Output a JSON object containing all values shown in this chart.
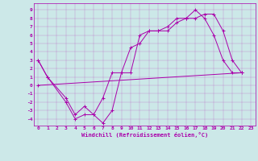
{
  "xlabel": "Windchill (Refroidissement éolien,°C)",
  "bg_color": "#cce8e8",
  "line_color": "#aa00aa",
  "xlim": [
    -0.5,
    23.5
  ],
  "ylim": [
    -4.8,
    9.8
  ],
  "xticks": [
    0,
    1,
    2,
    3,
    4,
    5,
    6,
    7,
    8,
    9,
    10,
    11,
    12,
    13,
    14,
    15,
    16,
    17,
    18,
    19,
    20,
    21,
    22,
    23
  ],
  "yticks": [
    -4,
    -3,
    -2,
    -1,
    0,
    1,
    2,
    3,
    4,
    5,
    6,
    7,
    8,
    9
  ],
  "series": [
    {
      "x": [
        0,
        1,
        3,
        4,
        5,
        6,
        7,
        8,
        9,
        10,
        11,
        12,
        13,
        14,
        15,
        16,
        17,
        18,
        19,
        20,
        21,
        22
      ],
      "y": [
        3,
        1,
        -2,
        -4,
        -3.5,
        -3.5,
        -4.5,
        -3,
        1.5,
        1.5,
        6,
        6.5,
        6.5,
        7,
        8,
        8,
        9,
        8,
        6,
        3,
        1.5,
        1.5
      ]
    },
    {
      "x": [
        0,
        1,
        3,
        4,
        5,
        6,
        7,
        8,
        9,
        10,
        11,
        12,
        13,
        14,
        15,
        16,
        17,
        18,
        19,
        20,
        21,
        22
      ],
      "y": [
        3,
        1,
        -1.5,
        -3.5,
        -2.5,
        -3.5,
        -1.5,
        1.5,
        1.5,
        4.5,
        5,
        6.5,
        6.5,
        6.5,
        7.5,
        8,
        8,
        8.5,
        8.5,
        6.5,
        3,
        1.5
      ]
    },
    {
      "x": [
        0,
        22
      ],
      "y": [
        0,
        1.5
      ]
    }
  ]
}
